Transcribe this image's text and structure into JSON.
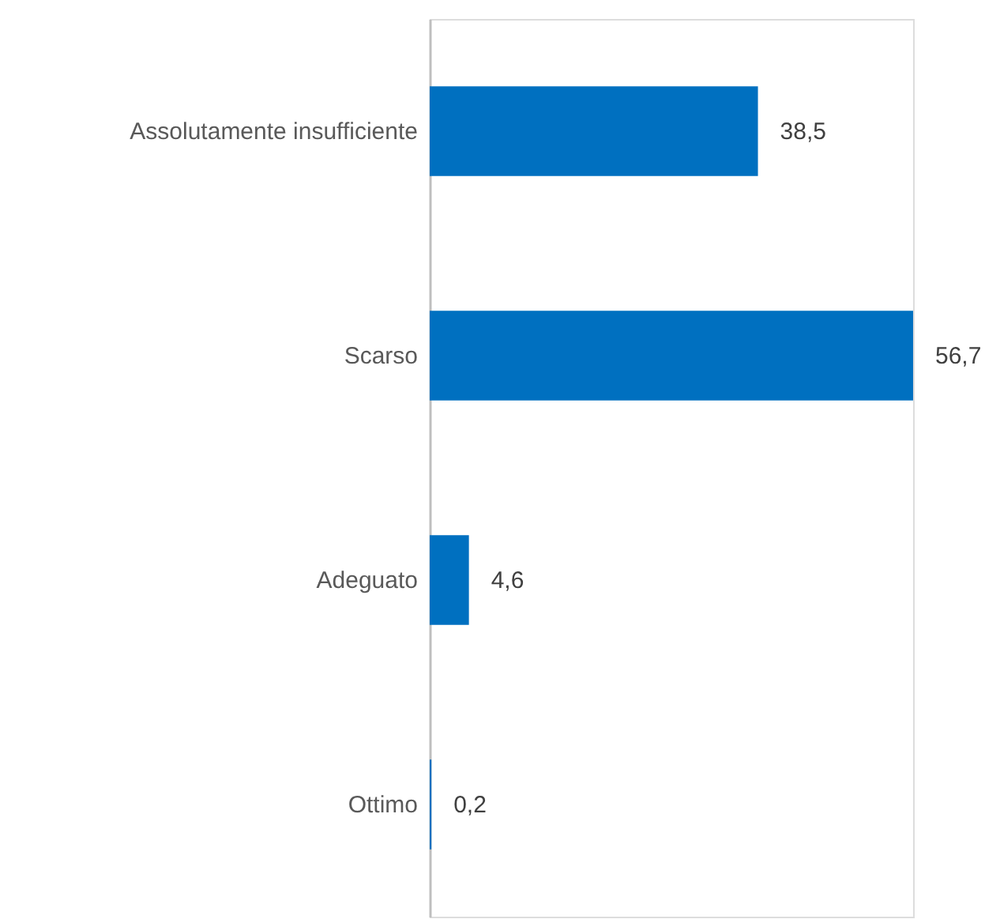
{
  "chart_data": {
    "type": "bar",
    "orientation": "horizontal",
    "categories": [
      "Assolutamente insufficiente",
      "Scarso",
      "Adeguato",
      "Ottimo"
    ],
    "values": [
      38.5,
      56.7,
      4.6,
      0.2
    ],
    "value_labels": [
      "38,5",
      "56,7",
      "4,6",
      "0,2"
    ],
    "color": "#0070c0"
  }
}
